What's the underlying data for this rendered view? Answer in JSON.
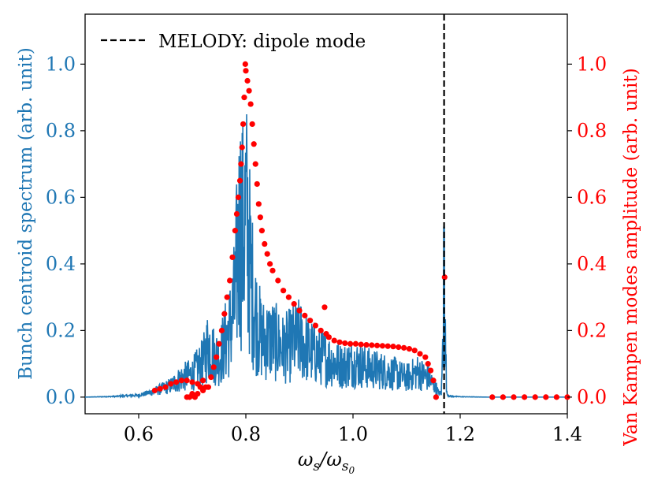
{
  "chart_data": {
    "type": "line",
    "title": "",
    "xlabel": "ω_s/ω_s0",
    "xlabel_parts": {
      "main": "ω",
      "sub1": "s",
      "sep": "/ω",
      "sub2": "s",
      "sub3": "0"
    },
    "ylabel_left": "Bunch centroid spectrum (arb. unit)",
    "ylabel_right": "Van Kampen modes amplitude (arb. unit)",
    "xlim": [
      0.5,
      1.4
    ],
    "ylim_left": [
      -0.05,
      1.15
    ],
    "ylim_right": [
      -0.05,
      1.15
    ],
    "x_ticks": [
      "0.6",
      "0.8",
      "1.0",
      "1.2",
      "1.4"
    ],
    "y_ticks_left": [
      "0.0",
      "0.2",
      "0.4",
      "0.6",
      "0.8",
      "1.0"
    ],
    "y_ticks_right": [
      "0.0",
      "0.2",
      "0.4",
      "0.6",
      "0.8",
      "1.0"
    ],
    "grid": false,
    "legend": {
      "position": "top-left",
      "entries": [
        {
          "label": "MELODY: dipole mode",
          "style": "dashed",
          "color": "#000000"
        }
      ]
    },
    "colors": {
      "spectrum": "#1f77b4",
      "modes": "#ff0000",
      "dipole": "#000000"
    },
    "dipole_mode_x": 1.17,
    "series": [
      {
        "kind": "spectrum_envelope",
        "color": "#1f77b4",
        "x": [
          0.5,
          0.55,
          0.6,
          0.63,
          0.66,
          0.68,
          0.7,
          0.72,
          0.73,
          0.74,
          0.75,
          0.76,
          0.77,
          0.78,
          0.785,
          0.79,
          0.795,
          0.8,
          0.805,
          0.81,
          0.82,
          0.83,
          0.85,
          0.87,
          0.9,
          0.92,
          0.95,
          0.98,
          1.0,
          1.03,
          1.05,
          1.08,
          1.1,
          1.12,
          1.14,
          1.155,
          1.16,
          1.165,
          1.17,
          1.175,
          1.18,
          1.2,
          1.25,
          1.3,
          1.35,
          1.4
        ],
        "y": [
          0.0,
          0.003,
          0.01,
          0.03,
          0.06,
          0.1,
          0.12,
          0.18,
          0.28,
          0.22,
          0.2,
          0.28,
          0.35,
          0.5,
          0.78,
          0.9,
          0.85,
          0.95,
          0.8,
          0.6,
          0.4,
          0.3,
          0.3,
          0.25,
          0.3,
          0.24,
          0.2,
          0.16,
          0.18,
          0.15,
          0.14,
          0.12,
          0.1,
          0.13,
          0.1,
          0.05,
          0.02,
          0.02,
          0.51,
          0.02,
          0.005,
          0.002,
          0.0,
          0.0,
          0.0,
          0.0
        ]
      },
      {
        "kind": "van_kampen_modes",
        "color": "#ff0000",
        "points": [
          [
            0.63,
            0.02
          ],
          [
            0.64,
            0.025
          ],
          [
            0.65,
            0.03
          ],
          [
            0.66,
            0.04
          ],
          [
            0.67,
            0.045
          ],
          [
            0.68,
            0.05
          ],
          [
            0.69,
            0.05
          ],
          [
            0.7,
            0.045
          ],
          [
            0.71,
            0.04
          ],
          [
            0.715,
            0.03
          ],
          [
            0.72,
            0.02
          ],
          [
            0.69,
            0.0
          ],
          [
            0.695,
            0.0
          ],
          [
            0.7,
            0.01
          ],
          [
            0.705,
            0.0
          ],
          [
            0.71,
            0.01
          ],
          [
            0.72,
            0.05
          ],
          [
            0.725,
            0.03
          ],
          [
            0.73,
            0.03
          ],
          [
            0.735,
            0.06
          ],
          [
            0.74,
            0.09
          ],
          [
            0.745,
            0.12
          ],
          [
            0.75,
            0.16
          ],
          [
            0.755,
            0.2
          ],
          [
            0.76,
            0.25
          ],
          [
            0.765,
            0.3
          ],
          [
            0.77,
            0.35
          ],
          [
            0.775,
            0.42
          ],
          [
            0.78,
            0.5
          ],
          [
            0.783,
            0.55
          ],
          [
            0.786,
            0.6
          ],
          [
            0.789,
            0.65
          ],
          [
            0.791,
            0.7
          ],
          [
            0.793,
            0.75
          ],
          [
            0.795,
            0.82
          ],
          [
            0.797,
            0.9
          ],
          [
            0.799,
            1.0
          ],
          [
            0.8,
            0.98
          ],
          [
            0.803,
            0.95
          ],
          [
            0.806,
            0.92
          ],
          [
            0.809,
            0.88
          ],
          [
            0.812,
            0.82
          ],
          [
            0.815,
            0.76
          ],
          [
            0.818,
            0.7
          ],
          [
            0.821,
            0.64
          ],
          [
            0.824,
            0.58
          ],
          [
            0.827,
            0.54
          ],
          [
            0.83,
            0.5
          ],
          [
            0.835,
            0.46
          ],
          [
            0.84,
            0.43
          ],
          [
            0.845,
            0.4
          ],
          [
            0.85,
            0.38
          ],
          [
            0.86,
            0.35
          ],
          [
            0.87,
            0.32
          ],
          [
            0.88,
            0.3
          ],
          [
            0.89,
            0.28
          ],
          [
            0.9,
            0.26
          ],
          [
            0.91,
            0.245
          ],
          [
            0.92,
            0.23
          ],
          [
            0.93,
            0.215
          ],
          [
            0.94,
            0.2
          ],
          [
            0.95,
            0.19
          ],
          [
            0.947,
            0.27
          ],
          [
            0.955,
            0.18
          ],
          [
            0.965,
            0.17
          ],
          [
            0.975,
            0.165
          ],
          [
            0.985,
            0.162
          ],
          [
            0.995,
            0.16
          ],
          [
            1.005,
            0.16
          ],
          [
            1.015,
            0.158
          ],
          [
            1.025,
            0.157
          ],
          [
            1.035,
            0.156
          ],
          [
            1.045,
            0.155
          ],
          [
            1.055,
            0.154
          ],
          [
            1.065,
            0.153
          ],
          [
            1.075,
            0.152
          ],
          [
            1.085,
            0.15
          ],
          [
            1.095,
            0.148
          ],
          [
            1.105,
            0.145
          ],
          [
            1.115,
            0.14
          ],
          [
            1.125,
            0.13
          ],
          [
            1.135,
            0.12
          ],
          [
            1.14,
            0.1
          ],
          [
            1.145,
            0.08
          ],
          [
            1.15,
            0.05
          ],
          [
            1.155,
            0.0
          ],
          [
            1.171,
            0.36
          ],
          [
            1.26,
            0.0
          ],
          [
            1.28,
            0.0
          ],
          [
            1.3,
            0.0
          ],
          [
            1.32,
            0.0
          ],
          [
            1.34,
            0.0
          ],
          [
            1.36,
            0.0
          ],
          [
            1.38,
            0.0
          ],
          [
            1.4,
            0.0
          ]
        ]
      }
    ]
  }
}
